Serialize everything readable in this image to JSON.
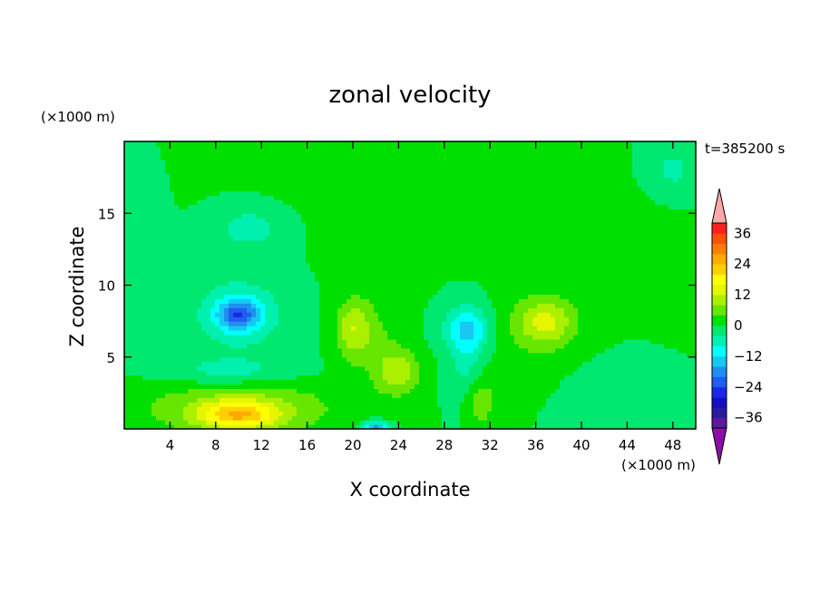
{
  "chart_data": {
    "type": "heatmap",
    "title": "zonal velocity",
    "xlabel": "X coordinate",
    "ylabel": "Z coordinate",
    "x_unit_label": "(×1000 m)",
    "y_unit_label": "(×1000 m)",
    "time_label": "t=385200 s",
    "xlim": [
      0,
      50
    ],
    "ylim": [
      0,
      20
    ],
    "x_ticks": [
      4,
      8,
      12,
      16,
      20,
      24,
      28,
      32,
      36,
      40,
      44,
      48
    ],
    "y_ticks": [
      5,
      10,
      15
    ],
    "colorbar": {
      "levels": [
        -40,
        -36,
        -32,
        -28,
        -24,
        -20,
        -16,
        -12,
        -8,
        -4,
        0,
        4,
        8,
        12,
        16,
        20,
        24,
        28,
        32,
        36,
        40
      ],
      "labeled_ticks": [
        36,
        24,
        12,
        0,
        -12,
        -24,
        -36
      ],
      "colors": [
        "#5a1a9a",
        "#2a1aa0",
        "#1010c0",
        "#1a28e6",
        "#1e5ef0",
        "#1e90f0",
        "#18c8f0",
        "#00ffff",
        "#00f0b0",
        "#00e870",
        "#00e000",
        "#66e600",
        "#aaf000",
        "#e6f500",
        "#ffff00",
        "#ffd000",
        "#ffaa00",
        "#ff8000",
        "#ff5000",
        "#ff1e1e"
      ],
      "under_color": "#8a10a8",
      "over_color": "#ffa8a8"
    },
    "features": [
      {
        "x": 29,
        "z": 17,
        "value": 2,
        "sx": 14,
        "sz": 3.5
      },
      {
        "x": 44,
        "z": 13,
        "value": 2,
        "sx": 6,
        "sz": 3
      },
      {
        "x": 22,
        "z": 13.5,
        "value": 2,
        "sx": 3.5,
        "sz": 4.5
      },
      {
        "x": 10,
        "z": 8,
        "value": -17,
        "sx": 1.8,
        "sz": 1.0
      },
      {
        "x": 10,
        "z": 8,
        "value": -8,
        "sx": 4,
        "sz": 2.6
      },
      {
        "x": 11,
        "z": 14,
        "value": -6,
        "sx": 3,
        "sz": 1.5
      },
      {
        "x": 9,
        "z": 4,
        "value": -6,
        "sx": 6,
        "sz": 1
      },
      {
        "x": 30,
        "z": 7,
        "value": -12,
        "sx": 2,
        "sz": 1.5
      },
      {
        "x": 30,
        "z": 4,
        "value": -6,
        "sx": 1.5,
        "sz": 3
      },
      {
        "x": 10,
        "z": 1,
        "value": 18,
        "sx": 3.5,
        "sz": 1
      },
      {
        "x": 10,
        "z": 1.5,
        "value": 8,
        "sx": 9,
        "sz": 2
      },
      {
        "x": 20,
        "z": 7,
        "value": 10,
        "sx": 1.5,
        "sz": 2
      },
      {
        "x": 24,
        "z": 4,
        "value": 10,
        "sx": 1.8,
        "sz": 1.5
      },
      {
        "x": 22,
        "z": 6,
        "value": 4,
        "sx": 2.5,
        "sz": 3
      },
      {
        "x": 31,
        "z": 2,
        "value": 8,
        "sx": 1.5,
        "sz": 2
      },
      {
        "x": 37,
        "z": 7.5,
        "value": 10,
        "sx": 2.5,
        "sz": 1.5
      },
      {
        "x": 36,
        "z": 7,
        "value": 4,
        "sx": 3.5,
        "sz": 3
      },
      {
        "x": 22,
        "z": 0,
        "value": -20,
        "sx": 1.2,
        "sz": 0.5
      },
      {
        "x": 1,
        "z": 12,
        "value": -4,
        "sx": 2,
        "sz": 4
      },
      {
        "x": 48,
        "z": 18,
        "value": -5,
        "sx": 2.5,
        "sz": 2
      },
      {
        "x": 42,
        "z": 2,
        "value": -4,
        "sx": 3,
        "sz": 2
      }
    ]
  }
}
